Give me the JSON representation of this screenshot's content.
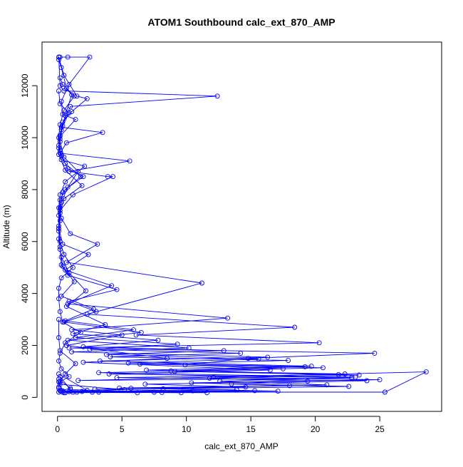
{
  "chart_data": {
    "type": "line",
    "title": "ATOM1 Southbound calc_ext_870_AMP",
    "xlabel": "calc_ext_870_AMP",
    "ylabel": "Altitude (m)",
    "xlim": [
      -1.2,
      29.8
    ],
    "ylim": [
      -540,
      13680
    ],
    "x_ticks": [
      0,
      5,
      10,
      15,
      20,
      25
    ],
    "y_ticks": [
      0,
      2000,
      4000,
      6000,
      8000,
      10000,
      12000
    ],
    "series_color": "#0000ff",
    "marker": "open-circle",
    "grid": false,
    "series": [
      {
        "x": [
          0.1,
          0.5,
          1.5,
          2.3,
          1.1,
          0.4,
          0.2,
          0.1,
          0.3,
          0.8,
          2.0,
          0.6,
          0.2,
          0.1,
          0.1,
          0.2,
          0.5,
          1.2,
          0.3,
          0.1,
          0.1,
          0.2,
          0.4,
          1.8,
          0.6,
          0.2,
          0.1,
          0.3,
          0.9,
          0.2,
          0.1,
          0.2,
          0.5,
          0.1,
          0.1,
          0.2,
          0.6,
          1.4,
          0.2,
          0.1,
          0.1
        ],
        "y": [
          13100,
          12400,
          11600,
          11500,
          11000,
          10600,
          10100,
          9700,
          9300,
          8800,
          8500,
          8000,
          7600,
          7000,
          6500,
          6000,
          5500,
          5000,
          4600,
          4200,
          3800,
          3300,
          2900,
          2500,
          2100,
          1700,
          1400,
          1100,
          800,
          600,
          400,
          250,
          180,
          200,
          350,
          600,
          900,
          1300,
          1800,
          2300,
          3000
        ]
      },
      {
        "x": [
          0.1,
          0.2,
          0.5,
          12.4,
          1.0,
          0.3,
          3.5,
          0.7,
          0.2,
          5.6,
          0.9,
          3.9,
          4.3,
          1.2,
          0.2,
          0.1,
          0.4,
          2.4,
          0.6,
          4.2,
          0.8,
          13.2,
          1.1,
          5.0,
          0.7,
          8.5,
          2.0,
          16.5,
          4.0,
          22.8,
          1.6,
          28.6,
          25.4,
          7.5,
          1.0,
          0.2
        ],
        "y": [
          13100,
          12000,
          11800,
          11600,
          11200,
          10400,
          10200,
          9800,
          9400,
          9100,
          8700,
          8500,
          8500,
          7800,
          7200,
          6500,
          5900,
          5500,
          4900,
          4300,
          3600,
          3050,
          2600,
          2400,
          2000,
          1500,
          1350,
          1050,
          900,
          750,
          650,
          980,
          200,
          200,
          300,
          800
        ]
      },
      {
        "x": [
          0.2,
          0.8,
          2.5,
          0.9,
          0.3,
          0.4,
          1.4,
          0.2,
          0.1,
          0.3,
          2.1,
          0.6,
          0.2,
          0.1,
          0.3,
          1.0,
          3.1,
          0.7,
          11.2,
          2.3,
          18.4,
          6.1,
          20.3,
          0.9,
          24.6,
          14.8,
          9.9,
          17.5,
          3.2,
          23.1,
          12.6,
          20.9,
          5.7,
          15.3,
          1.5,
          9.6,
          0.4,
          0.1
        ],
        "y": [
          13100,
          13100,
          13100,
          12050,
          11400,
          10900,
          10700,
          10050,
          9600,
          9150,
          8900,
          8300,
          7800,
          7300,
          6900,
          6300,
          5900,
          5200,
          4400,
          3200,
          2700,
          2400,
          2100,
          1900,
          1700,
          1500,
          1250,
          1100,
          950,
          780,
          620,
          480,
          350,
          260,
          200,
          180,
          250,
          600
        ]
      },
      {
        "x": [
          0.1,
          0.3,
          0.7,
          1.3,
          0.5,
          0.2,
          0.1,
          0.2,
          0.6,
          1.8,
          0.4,
          0.2,
          0.1,
          0.2,
          0.3,
          0.8,
          4.6,
          0.9,
          3.0,
          0.5,
          6.5,
          0.8,
          10.2,
          1.1,
          16.3,
          3.3,
          19.7,
          6.9,
          21.8,
          4.6,
          24.0,
          13.5,
          22.6,
          8.2,
          17.1,
          2.7,
          11.6,
          0.9,
          5.2,
          0.2
        ],
        "y": [
          13000,
          12700,
          11900,
          11600,
          11050,
          10500,
          10000,
          9500,
          9000,
          8500,
          7900,
          7300,
          6600,
          5800,
          5100,
          4700,
          4150,
          3700,
          3300,
          2900,
          2500,
          2200,
          1900,
          1750,
          1550,
          1400,
          1200,
          1050,
          880,
          760,
          640,
          520,
          420,
          330,
          240,
          200,
          180,
          220,
          300,
          500
        ]
      },
      {
        "x": [
          0.2,
          0.4,
          1.1,
          0.6,
          0.3,
          0.2,
          0.5,
          1.6,
          0.8,
          0.3,
          0.2,
          0.1,
          0.3,
          0.9,
          2.2,
          0.7,
          3.7,
          1.2,
          7.8,
          2.0,
          12.9,
          3.8,
          15.6,
          5.5,
          19.2,
          8.8,
          22.3,
          12.1,
          25.0,
          10.4,
          18.0,
          4.8,
          13.9,
          1.9,
          8.1,
          0.6,
          3.2,
          0.3,
          1.0,
          0.1
        ],
        "y": [
          12300,
          12050,
          11650,
          10850,
          10300,
          9850,
          9250,
          8700,
          8100,
          7500,
          6800,
          6100,
          5400,
          4800,
          4100,
          3500,
          2800,
          2450,
          2200,
          1950,
          1800,
          1650,
          1480,
          1320,
          1180,
          1020,
          900,
          780,
          680,
          560,
          450,
          360,
          290,
          230,
          190,
          180,
          200,
          260,
          350,
          700
        ]
      },
      {
        "x": [
          0.1,
          0.2,
          0.9,
          0.4,
          0.2,
          0.1,
          0.6,
          1.9,
          0.5,
          0.2,
          0.1,
          0.2,
          0.4,
          1.3,
          0.3,
          2.8,
          0.6,
          5.9,
          1.4,
          9.3,
          2.5,
          14.2,
          4.1,
          17.9,
          6.4,
          20.6,
          9.1,
          23.4,
          11.8,
          19.4,
          6.8,
          14.6,
          2.9,
          10.5,
          1.2,
          6.2,
          0.4,
          2.3,
          0.1
        ],
        "y": [
          11800,
          11300,
          10950,
          10450,
          9950,
          9350,
          8750,
          8150,
          7650,
          7100,
          6400,
          5700,
          5050,
          4450,
          3900,
          3400,
          2950,
          2600,
          2300,
          2050,
          1850,
          1700,
          1560,
          1420,
          1280,
          1140,
          1000,
          860,
          740,
          620,
          510,
          400,
          320,
          250,
          200,
          180,
          200,
          270,
          900
        ]
      }
    ]
  }
}
